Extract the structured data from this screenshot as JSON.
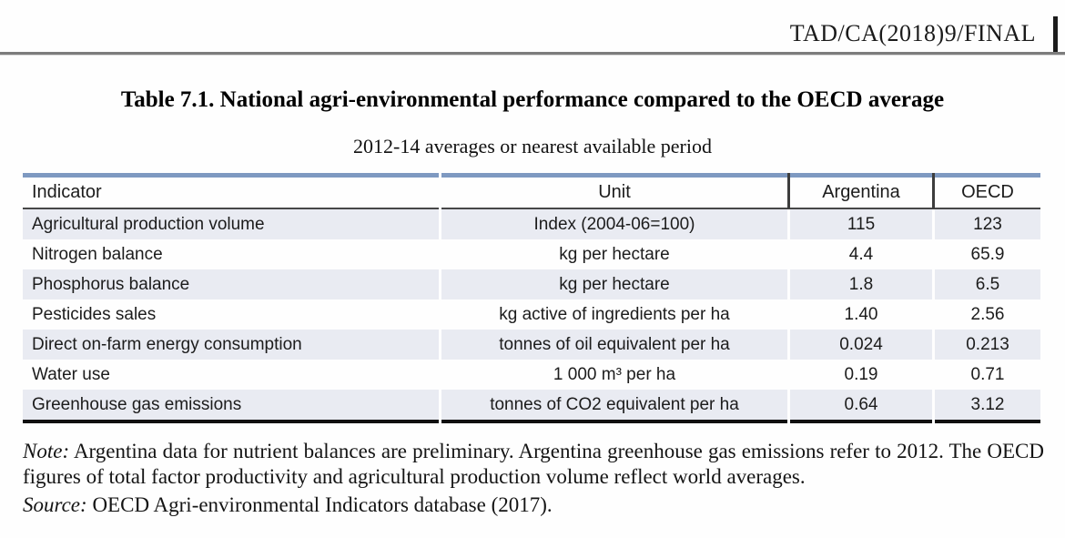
{
  "page": {
    "doc_ref": "TAD/CA(2018)9/FINAL",
    "title": "Table 7.1. National agri-environmental performance compared to the OECD average",
    "subtitle": "2012-14 averages or nearest available period",
    "note_label": "Note:",
    "note_text": " Argentina data for nutrient balances are preliminary. Argentina greenhouse gas emissions refer to 2012. The OECD figures of total factor productivity and agricultural production volume reflect world averages.",
    "source_label": "Source:",
    "source_text": " OECD Agri-environmental Indicators database (2017)."
  },
  "table": {
    "columns": [
      "Indicator",
      "Unit",
      "Argentina",
      "OECD"
    ],
    "rows": [
      [
        "Agricultural production volume",
        "Index (2004-06=100)",
        "115",
        "123"
      ],
      [
        "Nitrogen balance",
        "kg per hectare",
        "4.4",
        "65.9"
      ],
      [
        "Phosphorus balance",
        "kg per hectare",
        "1.8",
        "6.5"
      ],
      [
        "Pesticides sales",
        "kg active of ingredients per ha",
        "1.40",
        "2.56"
      ],
      [
        "Direct on-farm energy consumption",
        "tonnes of oil equivalent per ha",
        "0.024",
        "0.213"
      ],
      [
        "Water use",
        "1 000 m³ per ha",
        "0.19",
        "0.71"
      ],
      [
        "Greenhouse gas emissions",
        "tonnes of CO2 equivalent per ha",
        "0.64",
        "3.12"
      ]
    ]
  },
  "colors": {
    "table_top_border_blue": "#7e99c1",
    "row_shade": "#e9ebf2",
    "header_underline": "#474747",
    "table_bottom_border": "#101010",
    "page_rule_gray": "#7c7c7c"
  }
}
